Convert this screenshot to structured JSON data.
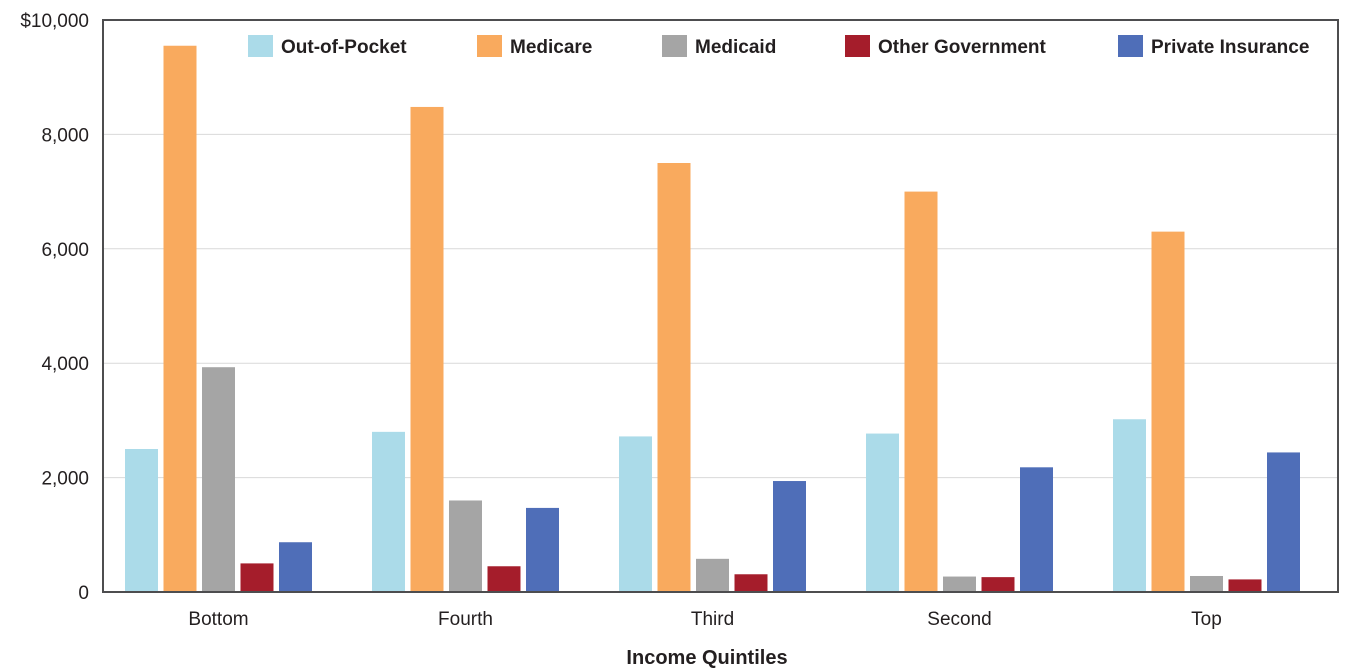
{
  "chart_data": {
    "type": "bar",
    "title": "",
    "xlabel": "Income Quintiles",
    "ylabel": "",
    "ylim": [
      0,
      10000
    ],
    "yticks": [
      0,
      2000,
      4000,
      6000,
      8000,
      10000
    ],
    "ytick_labels": [
      "0",
      "2,000",
      "4,000",
      "6,000",
      "8,000",
      "$10,000"
    ],
    "grid": true,
    "legend_position": "top",
    "categories": [
      "Bottom",
      "Fourth",
      "Third",
      "Second",
      "Top"
    ],
    "series": [
      {
        "name": "Out-of-Pocket",
        "color": "#abdbe9",
        "values": [
          2500,
          2800,
          2720,
          2770,
          3020
        ]
      },
      {
        "name": "Medicare",
        "color": "#f9aa5e",
        "values": [
          9550,
          8480,
          7500,
          7000,
          6300
        ]
      },
      {
        "name": "Medicaid",
        "color": "#a5a5a5",
        "values": [
          3930,
          1600,
          580,
          270,
          280
        ]
      },
      {
        "name": "Other Government",
        "color": "#a51d2b",
        "values": [
          500,
          450,
          310,
          260,
          220
        ]
      },
      {
        "name": "Private Insurance",
        "color": "#4f6eb8",
        "values": [
          870,
          1470,
          1940,
          2180,
          2440
        ]
      }
    ]
  }
}
